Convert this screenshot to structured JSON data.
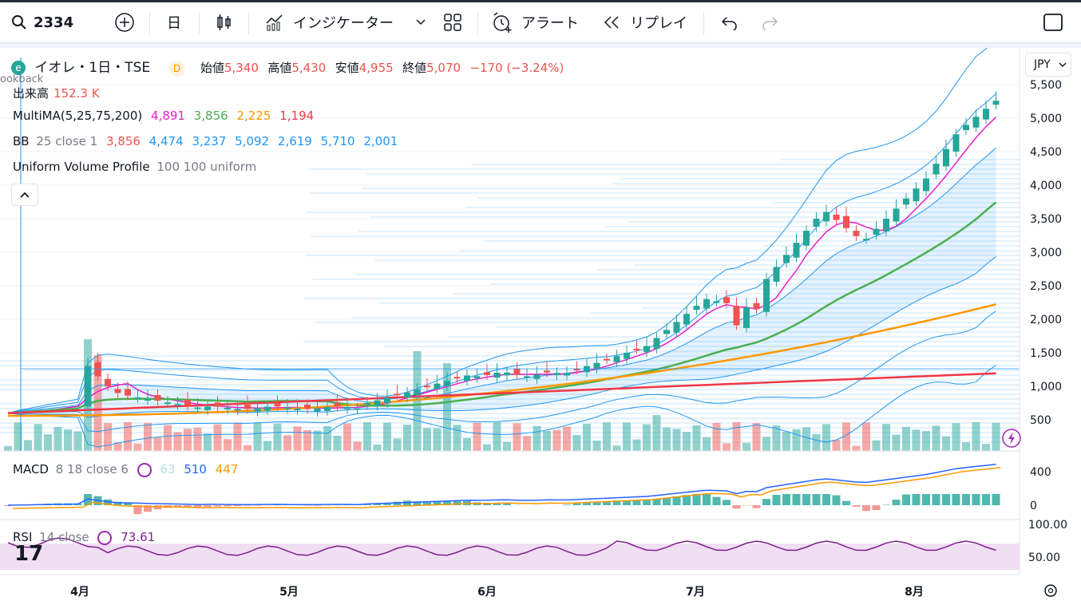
{
  "toolbar": {
    "symbol": "2334",
    "interval": "日",
    "indicators": "インジケーター",
    "alert": "アラート",
    "replay": "リプレイ"
  },
  "header": {
    "title": "イオレ・1日・TSE",
    "source_badge": "D",
    "open_label": "始値",
    "open": "5,340",
    "high_label": "高値",
    "high": "5,430",
    "low_label": "安値",
    "low": "4,955",
    "close_label": "終値",
    "close": "5,070",
    "change": "−170 (−3.24%)",
    "currency": "JPY",
    "lookback_fragment": "ookback"
  },
  "legends": {
    "volume": {
      "label": "出来高",
      "value": "152.3 K"
    },
    "multima": {
      "label": "MultiMA(5,25,75,200)",
      "v1": "4,891",
      "v2": "3,856",
      "v3": "2,225",
      "v4": "1,194"
    },
    "bb": {
      "label": "BB",
      "params": "25 close 1",
      "v1": "3,856",
      "v2": "4,474",
      "v3": "3,237",
      "v4": "5,092",
      "v5": "2,619",
      "v6": "5,710",
      "v7": "2,001"
    },
    "uvp": {
      "label": "Uniform Volume Profile",
      "params": "100 100 uniform"
    },
    "macd": {
      "label": "MACD",
      "params": "8 18 close 6",
      "v1": "63",
      "v2": "510",
      "v3": "447"
    },
    "rsi": {
      "label": "RSI",
      "params": "14 close",
      "v1": "73.61"
    }
  },
  "price_axis": [
    "5,500",
    "5,000",
    "4,500",
    "4,000",
    "3,500",
    "3,000",
    "2,500",
    "2,000",
    "1,500",
    "1,000",
    "500"
  ],
  "macd_axis": [
    "400",
    "0"
  ],
  "rsi_axis": [
    "100.00",
    "50.00"
  ],
  "time_axis": [
    "4月",
    "5月",
    "6月",
    "7月",
    "8月"
  ],
  "colors": {
    "up": "#26a69a",
    "down": "#ef5350",
    "ma5": "#e91ec8",
    "ma25": "#4caf50",
    "ma75": "#ff9800",
    "ma200": "#f23645",
    "bb": "#2196f3",
    "macd": "#2962ff",
    "signal": "#ff9800",
    "rsi": "#7e1e8c"
  }
}
